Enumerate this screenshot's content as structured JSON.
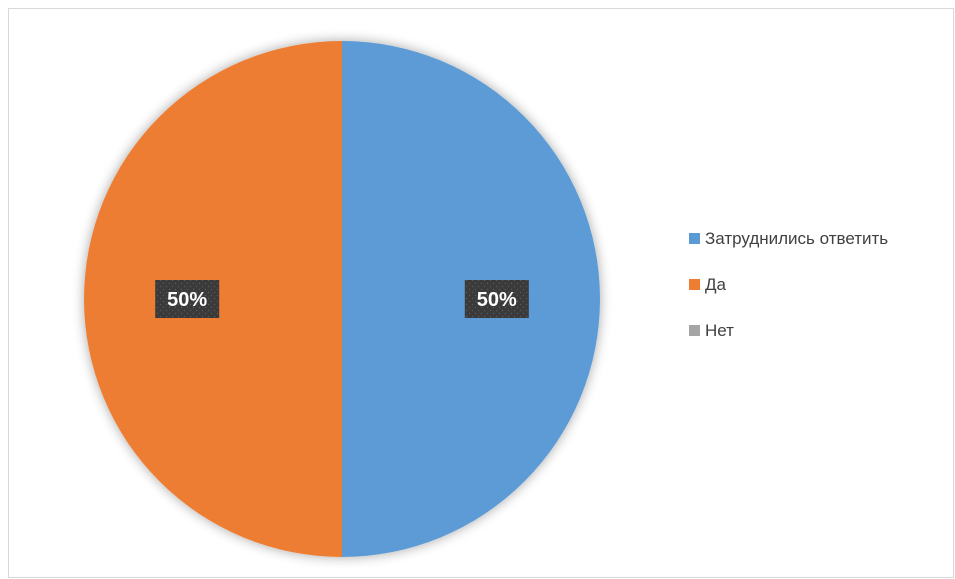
{
  "chart_data": {
    "type": "pie",
    "title": "",
    "categories": [
      "Затруднились ответить",
      "Да",
      "Нет"
    ],
    "values": [
      50,
      50,
      0
    ],
    "data_labels": [
      "50%",
      "50%",
      ""
    ],
    "colors": [
      "#5B9BD5",
      "#ED7D31",
      "#A5A5A5"
    ],
    "label_background": "#3a3a3a",
    "start_angle_deg": 0,
    "direction": "clockwise",
    "legend": {
      "position": "right",
      "entries": [
        "Затруднились ответить",
        "Да",
        "Нет"
      ]
    }
  }
}
